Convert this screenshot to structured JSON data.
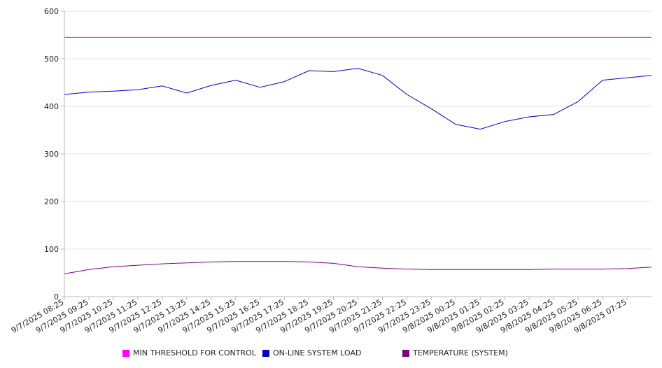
{
  "chart_data": {
    "type": "line",
    "title": "",
    "xlabel": "",
    "ylabel": "",
    "ylim": [
      0,
      600
    ],
    "y_ticks": [
      0,
      100,
      200,
      300,
      400,
      500,
      600
    ],
    "grid": true,
    "legend_position": "bottom",
    "x_ticks": [
      "9/7/2025 08:25",
      "9/7/2025 09:25",
      "9/7/2025 10:25",
      "9/7/2025 11:25",
      "9/7/2025 12:25",
      "9/7/2025 13:25",
      "9/7/2025 14:25",
      "9/7/2025 15:25",
      "9/7/2025 16:25",
      "9/7/2025 17:25",
      "9/7/2025 18:25",
      "9/7/2025 19:25",
      "9/7/2025 20:25",
      "9/7/2025 21:25",
      "9/7/2025 22:25",
      "9/7/2025 23:25",
      "9/8/2025 00:25",
      "9/8/2025 01:25",
      "9/8/2025 02:25",
      "9/8/2025 03:25",
      "9/8/2025 04:25",
      "9/8/2025 05:25",
      "9/8/2025 06:25",
      "9/8/2025 07:25"
    ],
    "series": [
      {
        "name": "MIN THRESHOLD FOR CONTROL",
        "color": "#ff00ff",
        "values": [
          545,
          545,
          545,
          545,
          545,
          545,
          545,
          545,
          545,
          545,
          545,
          545,
          545,
          545,
          545,
          545,
          545,
          545,
          545,
          545,
          545,
          545,
          545,
          545,
          545
        ]
      },
      {
        "name": "ON-LINE SYSTEM LOAD",
        "color": "#0000cc",
        "values": [
          425,
          430,
          432,
          435,
          443,
          428,
          444,
          455,
          440,
          452,
          475,
          473,
          480,
          465,
          425,
          395,
          362,
          352,
          368,
          378,
          383,
          410,
          455,
          460,
          465
        ]
      },
      {
        "name": "TEMPERATURE (SYSTEM)",
        "color": "#800080",
        "values": [
          48,
          57,
          63,
          66,
          69,
          71,
          73,
          74,
          74,
          74,
          73,
          70,
          63,
          60,
          58,
          57,
          57,
          57,
          57,
          57,
          58,
          58,
          58,
          59,
          62
        ]
      }
    ]
  }
}
